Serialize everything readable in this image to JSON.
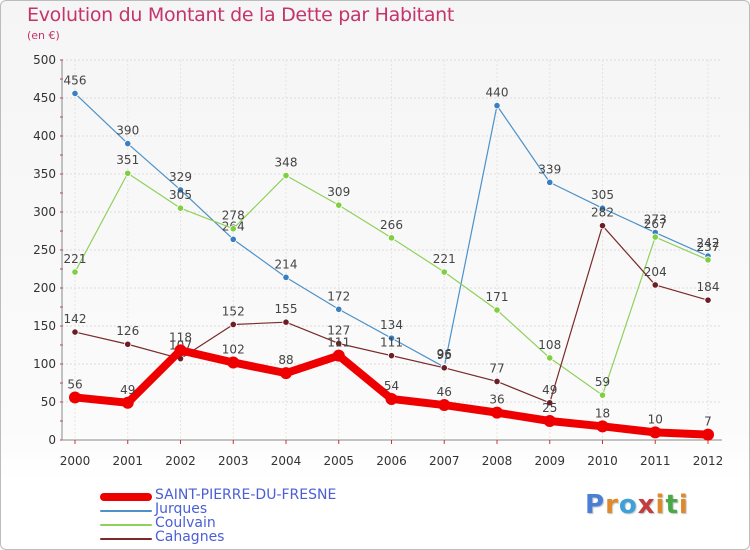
{
  "title": "Evolution du Montant de la Dette par Habitant",
  "subtitle": "(en €)",
  "logo": {
    "text": "Proxiti",
    "letter_colors": [
      "#4a7fd4",
      "#e0882a",
      "#3da0d8",
      "#c23e3e",
      "#e0882a",
      "#4aa846",
      "#e0882a"
    ]
  },
  "chart_data": {
    "type": "line",
    "title": "Evolution du Montant de la Dette par Habitant",
    "subtitle": "(en €)",
    "xlabel": "",
    "ylabel": "",
    "ylim": [
      0,
      500
    ],
    "yticks": [
      0,
      50,
      100,
      150,
      200,
      250,
      300,
      350,
      400,
      450,
      500
    ],
    "grid": true,
    "legend_position": "bottom-left",
    "categories": [
      "2000",
      "2001",
      "2002",
      "2003",
      "2004",
      "2005",
      "2006",
      "2007",
      "2008",
      "2009",
      "2010",
      "2011",
      "2012"
    ],
    "series": [
      {
        "name": "Jurques",
        "color": "#4d91c8",
        "marker": "#3a7fc0",
        "values": [
          456,
          390,
          329,
          264,
          214,
          172,
          134,
          96,
          440,
          339,
          305,
          273,
          242
        ]
      },
      {
        "name": "Coulvain",
        "color": "#8fd15a",
        "marker": "#7fcf3f",
        "values": [
          221,
          351,
          305,
          278,
          348,
          309,
          266,
          221,
          171,
          108,
          59,
          267,
          237
        ]
      },
      {
        "name": "Cahagnes",
        "color": "#7a2a2a",
        "marker": "#6b1e26",
        "values": [
          142,
          126,
          107,
          152,
          155,
          127,
          111,
          95,
          77,
          49,
          282,
          204,
          184
        ]
      },
      {
        "name": "SAINT-PIERRE-DU-FRESNE",
        "color": "#ee0000",
        "marker": "#ee0000",
        "bold": true,
        "values": [
          56,
          49,
          118,
          102,
          88,
          111,
          54,
          46,
          36,
          25,
          18,
          10,
          7
        ]
      }
    ],
    "legend_order": [
      "SAINT-PIERRE-DU-FRESNE",
      "Jurques",
      "Coulvain",
      "Cahagnes"
    ]
  }
}
